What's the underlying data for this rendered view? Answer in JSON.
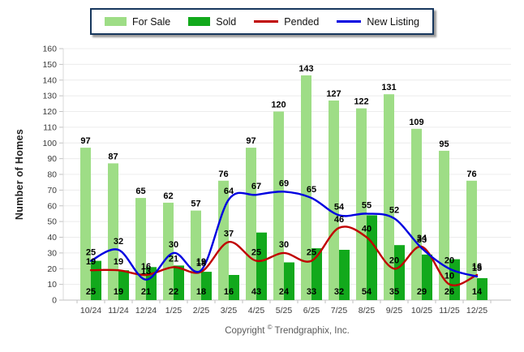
{
  "y_axis_title": "Number of Homes",
  "footer": {
    "copyright_prefix": "Copyright",
    "copyright_symbol": "©",
    "copyright_company": "Trendgraphix, Inc."
  },
  "chart_data": {
    "type": "bar",
    "subtype": "grouped-bars-with-smooth-lines",
    "title": "",
    "xlabel": "",
    "ylabel": "Number of Homes",
    "ylim": [
      0,
      160
    ],
    "ytick_step": 10,
    "grid": true,
    "legend_position": "top",
    "categories": [
      "10/24",
      "11/24",
      "12/24",
      "1/25",
      "2/25",
      "3/25",
      "4/25",
      "5/25",
      "6/25",
      "7/25",
      "8/25",
      "9/25",
      "10/25",
      "11/25",
      "12/25"
    ],
    "series": [
      {
        "name": "For Sale",
        "kind": "bar",
        "color": "#9edd86",
        "values": [
          97,
          87,
          65,
          62,
          57,
          76,
          97,
          120,
          143,
          127,
          122,
          131,
          109,
          95,
          76
        ]
      },
      {
        "name": "Sold",
        "kind": "bar",
        "color": "#12a91c",
        "values": [
          25,
          19,
          21,
          22,
          18,
          16,
          43,
          24,
          33,
          32,
          54,
          35,
          29,
          26,
          14
        ]
      },
      {
        "name": "Pended",
        "kind": "line",
        "color": "#c00000",
        "values": [
          19,
          19,
          16,
          21,
          18,
          37,
          25,
          30,
          25,
          46,
          40,
          20,
          34,
          10,
          16
        ]
      },
      {
        "name": "New Listing",
        "kind": "line",
        "color": "#0000e0",
        "values": [
          25,
          32,
          13,
          30,
          19,
          64,
          67,
          69,
          65,
          54,
          55,
          52,
          33,
          20,
          15
        ]
      }
    ]
  }
}
